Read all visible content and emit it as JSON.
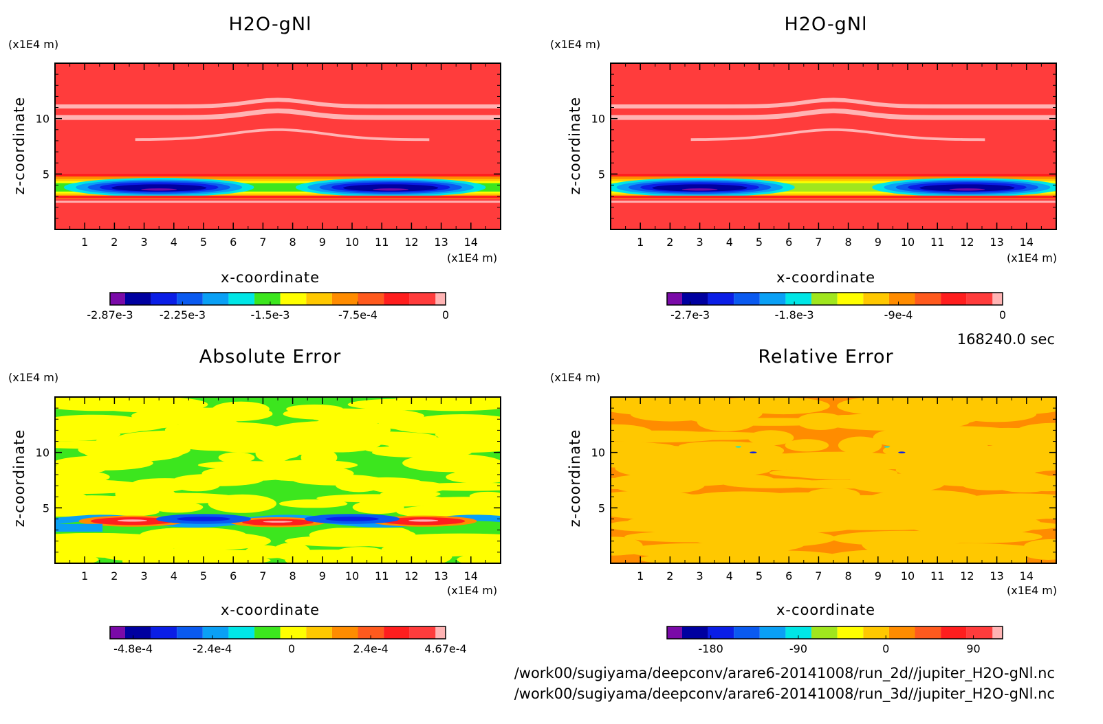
{
  "panels": [
    {
      "title": "H2O-gNl",
      "y_unit": "(x1E4 m)",
      "x_unit": "(x1E4 m)",
      "xlabel": "x-coordinate",
      "ylabel": "z-coordinate",
      "colorbar_ticks": [
        "-2.87e-3",
        "-2.25e-3",
        "-1.5e-3",
        "-7.5e-4",
        "0"
      ]
    },
    {
      "title": "H2O-gNl",
      "y_unit": "(x1E4 m)",
      "x_unit": "(x1E4 m)",
      "xlabel": "x-coordinate",
      "ylabel": "z-coordinate",
      "colorbar_ticks": [
        "-2.7e-3",
        "-1.8e-3",
        "-9e-4",
        "0"
      ]
    },
    {
      "title": "Absolute Error",
      "y_unit": "(x1E4 m)",
      "x_unit": "(x1E4 m)",
      "xlabel": "x-coordinate",
      "ylabel": "z-coordinate",
      "colorbar_ticks": [
        "-4.8e-4",
        "-2.4e-4",
        "0",
        "2.4e-4",
        "4.67e-4"
      ]
    },
    {
      "title": "Relative Error",
      "y_unit": "(x1E4 m)",
      "x_unit": "(x1E4 m)",
      "xlabel": "x-coordinate",
      "ylabel": "z-coordinate",
      "colorbar_ticks": [
        "-180",
        "-90",
        "0",
        "90"
      ]
    }
  ],
  "time_label": "168240.0 sec",
  "files": [
    "/work00/sugiyama/deepconv/arare6-20141008/run_2d//jupiter_H2O-gNl.nc",
    "/work00/sugiyama/deepconv/arare6-20141008/run_3d//jupiter_H2O-gNl.nc"
  ],
  "colors": {
    "purple": "#7a0aa8",
    "navy": "#0000a0",
    "blue": "#0a1ee6",
    "midblue": "#0a5af0",
    "ltblue": "#0aa0f5",
    "cyan": "#00e6e6",
    "green": "#3ce61e",
    "yellowgreen": "#a0e61e",
    "yellow": "#ffff00",
    "orange_y": "#ffc800",
    "orange": "#ff8c00",
    "redorange": "#ff5a1e",
    "red": "#ff1e1e",
    "lightred": "#ff3c3c",
    "pink": "#ffb4b4"
  },
  "chart_data": [
    {
      "type": "heatmap",
      "title": "H2O-gNl",
      "xlabel": "x-coordinate",
      "ylabel": "z-coordinate",
      "x_unit": "(x1E4 m)",
      "y_unit": "(x1E4 m)",
      "xlim": [
        0,
        15
      ],
      "ylim": [
        0,
        15
      ],
      "x_ticks": [
        1,
        2,
        3,
        4,
        5,
        6,
        7,
        8,
        9,
        10,
        11,
        12,
        13,
        14
      ],
      "y_ticks": [
        5,
        10
      ],
      "value_range": [
        -0.00287,
        0
      ],
      "colorbar_ticks": [
        -0.00287,
        -0.00225,
        -0.0015,
        -0.00075,
        0
      ],
      "features": {
        "min_layer_z": [
          3,
          4.5
        ],
        "min_centers_x": [
          3.5,
          11.2
        ],
        "background": 0
      }
    },
    {
      "type": "heatmap",
      "title": "H2O-gNl",
      "xlabel": "x-coordinate",
      "ylabel": "z-coordinate",
      "x_unit": "(x1E4 m)",
      "y_unit": "(x1E4 m)",
      "xlim": [
        0,
        15
      ],
      "ylim": [
        0,
        15
      ],
      "x_ticks": [
        1,
        2,
        3,
        4,
        5,
        6,
        7,
        8,
        9,
        10,
        11,
        12,
        13,
        14
      ],
      "y_ticks": [
        5,
        10
      ],
      "value_range": [
        -0.0029,
        0
      ],
      "colorbar_ticks": [
        -0.0027,
        -0.0018,
        -0.0009,
        0
      ],
      "features": {
        "min_layer_z": [
          3,
          4.5
        ],
        "min_centers_x": [
          3,
          12
        ],
        "background": 0
      }
    },
    {
      "type": "heatmap",
      "title": "Absolute Error",
      "xlabel": "x-coordinate",
      "ylabel": "z-coordinate",
      "x_unit": "(x1E4 m)",
      "y_unit": "(x1E4 m)",
      "xlim": [
        0,
        15
      ],
      "ylim": [
        0,
        15
      ],
      "x_ticks": [
        1,
        2,
        3,
        4,
        5,
        6,
        7,
        8,
        9,
        10,
        11,
        12,
        13,
        14
      ],
      "y_ticks": [
        5,
        10
      ],
      "value_range": [
        -0.00048,
        0.000467
      ],
      "colorbar_ticks": [
        -0.00048,
        -0.00024,
        0,
        0.00024,
        0.000467
      ]
    },
    {
      "type": "heatmap",
      "title": "Relative Error",
      "xlabel": "x-coordinate",
      "ylabel": "z-coordinate",
      "x_unit": "(x1E4 m)",
      "y_unit": "(x1E4 m)",
      "xlim": [
        0,
        15
      ],
      "ylim": [
        0,
        15
      ],
      "x_ticks": [
        1,
        2,
        3,
        4,
        5,
        6,
        7,
        8,
        9,
        10,
        11,
        12,
        13,
        14
      ],
      "y_ticks": [
        5,
        10
      ],
      "colorbar_ticks": [
        -180,
        -90,
        0,
        90
      ]
    }
  ]
}
